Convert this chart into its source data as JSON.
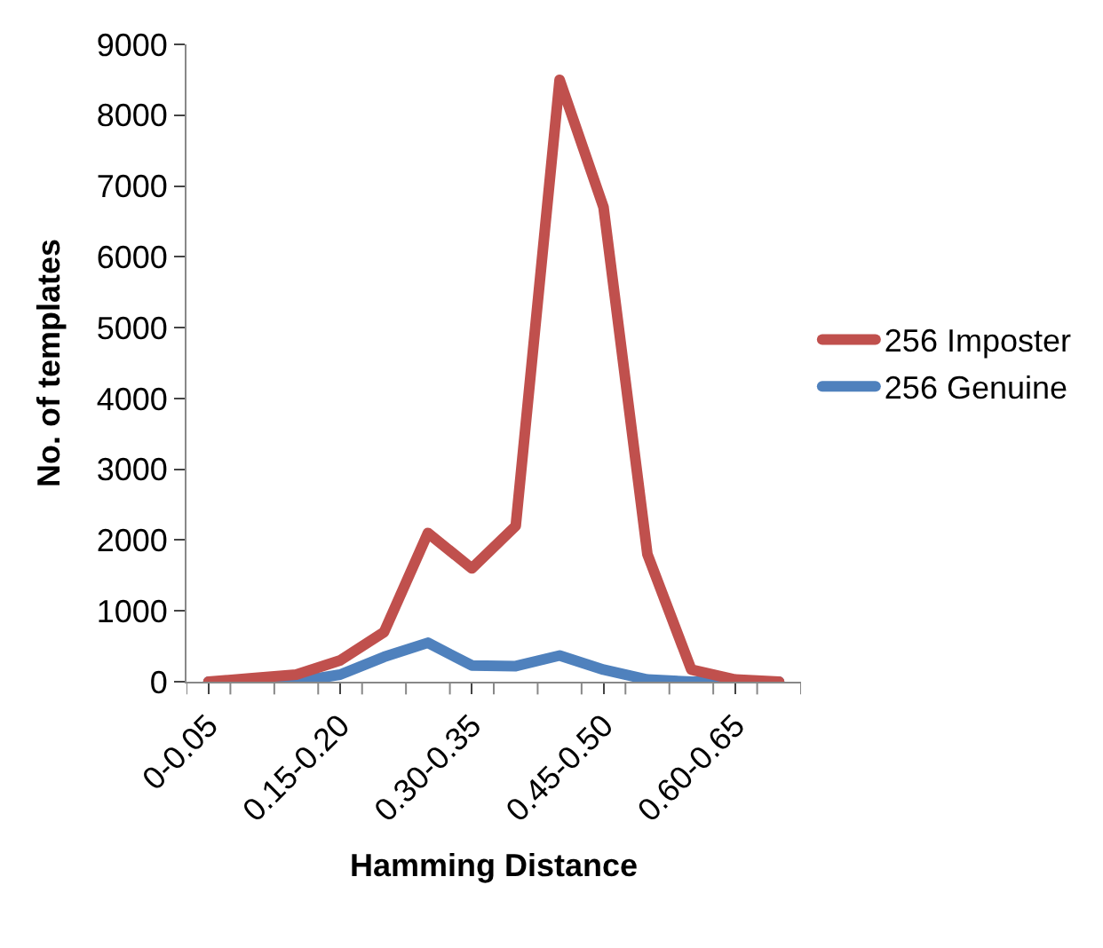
{
  "chart_data": {
    "type": "line",
    "xlabel": "Hamming Distance",
    "ylabel": "No. of templates",
    "categories": [
      "0-0.05",
      null,
      null,
      "0.15-0.20",
      null,
      null,
      "0.30-0.35",
      null,
      null,
      "0.45-0.50",
      null,
      null,
      "0.60-0.65",
      null
    ],
    "series": [
      {
        "name": "256 Imposter",
        "color": "#c0504d",
        "values": [
          0,
          50,
          100,
          300,
          700,
          2100,
          1600,
          2200,
          8500,
          6700,
          1800,
          170,
          30,
          0
        ]
      },
      {
        "name": "256 Genuine",
        "color": "#4f81bd",
        "values": [
          0,
          0,
          0,
          100,
          350,
          550,
          230,
          220,
          370,
          170,
          30,
          0,
          0,
          0
        ]
      }
    ],
    "ylim": [
      0,
      9000
    ],
    "yticks": [
      0,
      1000,
      2000,
      3000,
      4000,
      5000,
      6000,
      7000,
      8000,
      9000
    ],
    "legend": "right",
    "marker": "none",
    "line_style": "solid"
  }
}
